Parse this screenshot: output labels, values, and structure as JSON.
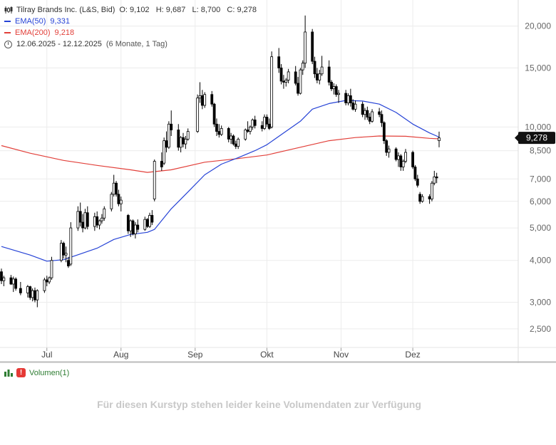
{
  "legend": {
    "instrument": "Tilray Brands Inc. (L&S, Bid)",
    "ohlc": "O: 9,102   H: 9,687   L: 8,700   C: 9,278",
    "ema50_label": "EMA(50)",
    "ema50_value": "9,331",
    "ema200_label": "EMA(200)",
    "ema200_value": "9,218",
    "period": "12.06.2025 - 12.12.2025",
    "period_note": "(6 Monate, 1 Tag)"
  },
  "volume": {
    "label": "Volumen(1)",
    "badge": "!",
    "message": "Für diesen Kurstyp stehen leider keine Volumendaten zur Verfügung"
  },
  "colors": {
    "ema50": "#2643d6",
    "ema200": "#e2403a",
    "candle": "#000000",
    "grid": "#ececec",
    "axis_text": "#666666",
    "last_price_bg": "#111111"
  },
  "chart_data": {
    "type": "candlestick",
    "scale": "log",
    "ylim": [
      2.2,
      23
    ],
    "y_ticks": [
      2.5,
      3,
      4,
      5,
      6,
      7,
      8.5,
      10,
      15,
      20
    ],
    "y_tick_labels": [
      "2,500",
      "3,000",
      "4,000",
      "5,000",
      "6,000",
      "7,000",
      "8,500",
      "10,000",
      "15,000",
      "20,000"
    ],
    "x_ticks": [
      {
        "label": "Jul",
        "date": "2025-07-01"
      },
      {
        "label": "Aug",
        "date": "2025-08-01"
      },
      {
        "label": "Sep",
        "date": "2025-09-01"
      },
      {
        "label": "Okt",
        "date": "2025-10-01"
      },
      {
        "label": "Nov",
        "date": "2025-11-01"
      },
      {
        "label": "Dez",
        "date": "2025-12-01"
      }
    ],
    "last_price_label": "9,278",
    "last_price": 9.278,
    "candles": [
      {
        "d": "2025-06-12",
        "o": 3.7,
        "h": 3.78,
        "l": 3.4,
        "c": 3.48
      },
      {
        "d": "2025-06-13",
        "o": 3.48,
        "h": 3.6,
        "l": 3.35,
        "c": 3.55
      },
      {
        "d": "2025-06-16",
        "o": 3.55,
        "h": 3.62,
        "l": 3.38,
        "c": 3.4
      },
      {
        "d": "2025-06-17",
        "o": 3.4,
        "h": 3.58,
        "l": 3.22,
        "c": 3.52
      },
      {
        "d": "2025-06-18",
        "o": 3.52,
        "h": 3.56,
        "l": 3.25,
        "c": 3.3
      },
      {
        "d": "2025-06-20",
        "o": 3.3,
        "h": 3.45,
        "l": 3.15,
        "c": 3.2
      },
      {
        "d": "2025-06-23",
        "o": 3.2,
        "h": 3.38,
        "l": 3.1,
        "c": 3.34
      },
      {
        "d": "2025-06-24",
        "o": 3.34,
        "h": 3.36,
        "l": 3.05,
        "c": 3.1
      },
      {
        "d": "2025-06-25",
        "o": 3.1,
        "h": 3.3,
        "l": 3.02,
        "c": 3.25
      },
      {
        "d": "2025-06-26",
        "o": 3.25,
        "h": 3.32,
        "l": 3.0,
        "c": 3.05
      },
      {
        "d": "2025-06-27",
        "o": 3.05,
        "h": 3.28,
        "l": 2.9,
        "c": 3.25
      },
      {
        "d": "2025-06-30",
        "o": 3.25,
        "h": 3.55,
        "l": 3.2,
        "c": 3.5
      },
      {
        "d": "2025-07-01",
        "o": 3.5,
        "h": 3.6,
        "l": 3.35,
        "c": 3.45
      },
      {
        "d": "2025-07-02",
        "o": 3.45,
        "h": 3.58,
        "l": 3.4,
        "c": 3.55
      },
      {
        "d": "2025-07-03",
        "o": 3.55,
        "h": 4.1,
        "l": 3.5,
        "c": 4.0
      },
      {
        "d": "2025-07-07",
        "o": 4.0,
        "h": 4.6,
        "l": 3.95,
        "c": 4.5
      },
      {
        "d": "2025-07-08",
        "o": 4.5,
        "h": 4.55,
        "l": 4.05,
        "c": 4.15
      },
      {
        "d": "2025-07-09",
        "o": 4.15,
        "h": 4.4,
        "l": 3.95,
        "c": 4.2
      },
      {
        "d": "2025-07-10",
        "o": 4.0,
        "h": 4.1,
        "l": 3.8,
        "c": 3.85
      },
      {
        "d": "2025-07-11",
        "o": 3.9,
        "h": 5.2,
        "l": 3.85,
        "c": 5.0
      },
      {
        "d": "2025-07-14",
        "o": 5.0,
        "h": 5.8,
        "l": 4.9,
        "c": 5.6
      },
      {
        "d": "2025-07-15",
        "o": 5.6,
        "h": 5.95,
        "l": 5.05,
        "c": 5.2
      },
      {
        "d": "2025-07-16",
        "o": 5.2,
        "h": 5.5,
        "l": 4.85,
        "c": 5.0
      },
      {
        "d": "2025-07-17",
        "o": 5.0,
        "h": 5.7,
        "l": 4.95,
        "c": 5.55
      },
      {
        "d": "2025-07-18",
        "o": 5.55,
        "h": 5.8,
        "l": 4.95,
        "c": 5.05
      },
      {
        "d": "2025-07-21",
        "o": 5.05,
        "h": 5.55,
        "l": 4.9,
        "c": 5.4
      },
      {
        "d": "2025-07-22",
        "o": 5.4,
        "h": 5.6,
        "l": 5.0,
        "c": 5.1
      },
      {
        "d": "2025-07-23",
        "o": 5.1,
        "h": 5.3,
        "l": 4.95,
        "c": 5.25
      },
      {
        "d": "2025-07-24",
        "o": 5.25,
        "h": 5.5,
        "l": 5.15,
        "c": 5.35
      },
      {
        "d": "2025-07-25",
        "o": 5.35,
        "h": 5.8,
        "l": 5.25,
        "c": 5.7
      },
      {
        "d": "2025-07-28",
        "o": 5.7,
        "h": 6.4,
        "l": 5.6,
        "c": 6.3
      },
      {
        "d": "2025-07-29",
        "o": 6.3,
        "h": 7.2,
        "l": 6.2,
        "c": 6.8
      },
      {
        "d": "2025-07-30",
        "o": 6.8,
        "h": 6.9,
        "l": 6.2,
        "c": 6.3
      },
      {
        "d": "2025-07-31",
        "o": 6.3,
        "h": 6.5,
        "l": 5.8,
        "c": 5.9
      },
      {
        "d": "2025-08-01",
        "o": 5.9,
        "h": 6.2,
        "l": 5.6,
        "c": 6.05
      },
      {
        "d": "2025-08-04",
        "o": 5.45,
        "h": 5.5,
        "l": 4.8,
        "c": 4.9
      },
      {
        "d": "2025-08-05",
        "o": 4.9,
        "h": 5.3,
        "l": 4.7,
        "c": 5.25
      },
      {
        "d": "2025-08-06",
        "o": 5.25,
        "h": 5.3,
        "l": 4.75,
        "c": 4.8
      },
      {
        "d": "2025-08-07",
        "o": 4.8,
        "h": 5.2,
        "l": 4.65,
        "c": 5.1
      },
      {
        "d": "2025-08-08",
        "o": 5.1,
        "h": 5.3,
        "l": 4.85,
        "c": 4.95
      },
      {
        "d": "2025-08-11",
        "o": 4.95,
        "h": 5.4,
        "l": 4.9,
        "c": 5.3
      },
      {
        "d": "2025-08-12",
        "o": 5.3,
        "h": 5.35,
        "l": 5.0,
        "c": 5.05
      },
      {
        "d": "2025-08-13",
        "o": 5.05,
        "h": 5.55,
        "l": 5.0,
        "c": 5.45
      },
      {
        "d": "2025-08-14",
        "o": 5.45,
        "h": 5.65,
        "l": 5.1,
        "c": 5.2
      },
      {
        "d": "2025-08-15",
        "o": 6.1,
        "h": 8.0,
        "l": 6.0,
        "c": 7.9
      },
      {
        "d": "2025-08-18",
        "o": 7.9,
        "h": 8.4,
        "l": 7.4,
        "c": 7.6
      },
      {
        "d": "2025-08-19",
        "o": 7.8,
        "h": 9.3,
        "l": 7.7,
        "c": 9.1
      },
      {
        "d": "2025-08-20",
        "o": 9.1,
        "h": 9.7,
        "l": 8.4,
        "c": 8.7
      },
      {
        "d": "2025-08-21",
        "o": 8.7,
        "h": 10.4,
        "l": 8.6,
        "c": 10.2
      },
      {
        "d": "2025-08-22",
        "o": 10.2,
        "h": 11.2,
        "l": 9.4,
        "c": 9.8
      },
      {
        "d": "2025-08-25",
        "o": 9.8,
        "h": 10.2,
        "l": 8.5,
        "c": 8.7
      },
      {
        "d": "2025-08-26",
        "o": 8.7,
        "h": 9.4,
        "l": 8.4,
        "c": 9.3
      },
      {
        "d": "2025-08-27",
        "o": 9.3,
        "h": 9.6,
        "l": 8.7,
        "c": 8.9
      },
      {
        "d": "2025-08-28",
        "o": 8.9,
        "h": 9.4,
        "l": 8.6,
        "c": 9.2
      },
      {
        "d": "2025-08-29",
        "o": 9.2,
        "h": 9.9,
        "l": 9.1,
        "c": 9.7
      },
      {
        "d": "2025-09-02",
        "o": 9.7,
        "h": 12.5,
        "l": 9.6,
        "c": 12.2
      },
      {
        "d": "2025-09-03",
        "o": 12.2,
        "h": 13.6,
        "l": 11.8,
        "c": 12.4
      },
      {
        "d": "2025-09-04",
        "o": 12.4,
        "h": 12.9,
        "l": 11.3,
        "c": 11.6
      },
      {
        "d": "2025-09-05",
        "o": 11.6,
        "h": 12.7,
        "l": 11.4,
        "c": 12.5
      },
      {
        "d": "2025-09-08",
        "o": 12.5,
        "h": 12.8,
        "l": 11.5,
        "c": 11.7
      },
      {
        "d": "2025-09-09",
        "o": 11.7,
        "h": 11.8,
        "l": 10.0,
        "c": 10.2
      },
      {
        "d": "2025-09-10",
        "o": 10.2,
        "h": 10.6,
        "l": 9.4,
        "c": 9.7
      },
      {
        "d": "2025-09-11",
        "o": 9.7,
        "h": 10.2,
        "l": 9.3,
        "c": 9.5
      },
      {
        "d": "2025-09-12",
        "o": 9.5,
        "h": 10.1,
        "l": 9.4,
        "c": 9.9
      },
      {
        "d": "2025-09-15",
        "o": 9.9,
        "h": 10.0,
        "l": 9.0,
        "c": 9.2
      },
      {
        "d": "2025-09-16",
        "o": 9.2,
        "h": 9.6,
        "l": 8.9,
        "c": 9.4
      },
      {
        "d": "2025-09-17",
        "o": 9.4,
        "h": 9.5,
        "l": 8.8,
        "c": 8.9
      },
      {
        "d": "2025-09-18",
        "o": 8.9,
        "h": 9.1,
        "l": 8.6,
        "c": 8.75
      },
      {
        "d": "2025-09-19",
        "o": 8.75,
        "h": 9.3,
        "l": 8.6,
        "c": 9.2
      },
      {
        "d": "2025-09-22",
        "o": 9.2,
        "h": 9.9,
        "l": 9.1,
        "c": 9.8
      },
      {
        "d": "2025-09-23",
        "o": 9.8,
        "h": 10.4,
        "l": 9.6,
        "c": 9.7
      },
      {
        "d": "2025-09-24",
        "o": 9.7,
        "h": 10.1,
        "l": 9.5,
        "c": 10.0
      },
      {
        "d": "2025-09-25",
        "o": 10.0,
        "h": 10.6,
        "l": 9.8,
        "c": 10.5
      },
      {
        "d": "2025-09-26",
        "o": 10.5,
        "h": 10.8,
        "l": 9.9,
        "c": 10.1
      },
      {
        "d": "2025-09-29",
        "o": 10.1,
        "h": 10.4,
        "l": 9.7,
        "c": 9.9
      },
      {
        "d": "2025-09-30",
        "o": 9.9,
        "h": 10.9,
        "l": 9.8,
        "c": 10.7
      },
      {
        "d": "2025-10-01",
        "o": 10.7,
        "h": 10.9,
        "l": 10.0,
        "c": 10.2
      },
      {
        "d": "2025-10-02",
        "o": 10.2,
        "h": 10.6,
        "l": 9.8,
        "c": 9.9
      },
      {
        "d": "2025-10-03",
        "o": 10.0,
        "h": 16.8,
        "l": 9.9,
        "c": 16.2
      },
      {
        "d": "2025-10-06",
        "o": 16.2,
        "h": 17.2,
        "l": 14.5,
        "c": 15.0
      },
      {
        "d": "2025-10-07",
        "o": 15.0,
        "h": 15.4,
        "l": 13.4,
        "c": 13.7
      },
      {
        "d": "2025-10-08",
        "o": 13.7,
        "h": 14.3,
        "l": 13.0,
        "c": 13.6
      },
      {
        "d": "2025-10-09",
        "o": 13.6,
        "h": 14.0,
        "l": 13.2,
        "c": 13.8
      },
      {
        "d": "2025-10-10",
        "o": 13.8,
        "h": 14.9,
        "l": 13.5,
        "c": 14.6
      },
      {
        "d": "2025-10-13",
        "o": 14.6,
        "h": 15.2,
        "l": 13.3,
        "c": 13.5
      },
      {
        "d": "2025-10-14",
        "o": 13.5,
        "h": 14.1,
        "l": 12.4,
        "c": 12.6
      },
      {
        "d": "2025-10-15",
        "o": 12.6,
        "h": 15.0,
        "l": 12.5,
        "c": 14.8
      },
      {
        "d": "2025-10-16",
        "o": 14.8,
        "h": 15.8,
        "l": 14.3,
        "c": 15.5
      },
      {
        "d": "2025-10-17",
        "o": 15.5,
        "h": 21.5,
        "l": 15.0,
        "c": 19.2
      },
      {
        "d": "2025-10-20",
        "o": 19.2,
        "h": 19.6,
        "l": 15.4,
        "c": 15.7
      },
      {
        "d": "2025-10-21",
        "o": 15.7,
        "h": 16.2,
        "l": 14.0,
        "c": 14.4
      },
      {
        "d": "2025-10-22",
        "o": 14.4,
        "h": 15.0,
        "l": 13.5,
        "c": 13.8
      },
      {
        "d": "2025-10-23",
        "o": 13.8,
        "h": 14.8,
        "l": 13.4,
        "c": 14.4
      },
      {
        "d": "2025-10-24",
        "o": 14.4,
        "h": 16.3,
        "l": 14.2,
        "c": 15.1
      },
      {
        "d": "2025-10-27",
        "o": 15.1,
        "h": 15.8,
        "l": 13.3,
        "c": 13.6
      },
      {
        "d": "2025-10-28",
        "o": 13.6,
        "h": 13.8,
        "l": 12.8,
        "c": 13.0
      },
      {
        "d": "2025-10-29",
        "o": 13.0,
        "h": 13.5,
        "l": 12.5,
        "c": 13.2
      },
      {
        "d": "2025-10-30",
        "o": 13.2,
        "h": 13.4,
        "l": 12.3,
        "c": 12.5
      },
      {
        "d": "2025-10-31",
        "o": 12.5,
        "h": 12.9,
        "l": 11.8,
        "c": 12.6
      },
      {
        "d": "2025-11-03",
        "o": 12.6,
        "h": 12.9,
        "l": 11.6,
        "c": 11.8
      },
      {
        "d": "2025-11-04",
        "o": 11.8,
        "h": 12.6,
        "l": 11.6,
        "c": 12.4
      },
      {
        "d": "2025-11-05",
        "o": 12.4,
        "h": 13.0,
        "l": 11.5,
        "c": 11.8
      },
      {
        "d": "2025-11-06",
        "o": 11.8,
        "h": 12.1,
        "l": 11.2,
        "c": 11.3
      },
      {
        "d": "2025-11-07",
        "o": 11.3,
        "h": 12.0,
        "l": 11.1,
        "c": 11.7
      },
      {
        "d": "2025-11-10",
        "o": 11.7,
        "h": 11.9,
        "l": 10.7,
        "c": 10.9
      },
      {
        "d": "2025-11-11",
        "o": 10.9,
        "h": 11.4,
        "l": 10.5,
        "c": 11.2
      },
      {
        "d": "2025-11-12",
        "o": 11.2,
        "h": 11.5,
        "l": 10.5,
        "c": 10.7
      },
      {
        "d": "2025-11-13",
        "o": 10.7,
        "h": 11.0,
        "l": 10.2,
        "c": 10.4
      },
      {
        "d": "2025-11-14",
        "o": 10.4,
        "h": 11.3,
        "l": 10.3,
        "c": 11.1
      },
      {
        "d": "2025-11-17",
        "o": 11.1,
        "h": 11.4,
        "l": 10.7,
        "c": 10.9
      },
      {
        "d": "2025-11-18",
        "o": 10.9,
        "h": 11.2,
        "l": 10.0,
        "c": 10.3
      },
      {
        "d": "2025-11-19",
        "o": 10.3,
        "h": 10.4,
        "l": 8.9,
        "c": 9.1
      },
      {
        "d": "2025-11-20",
        "o": 9.1,
        "h": 9.2,
        "l": 8.2,
        "c": 8.4
      },
      {
        "d": "2025-11-21",
        "o": 8.4,
        "h": 8.8,
        "l": 8.1,
        "c": 8.6
      },
      {
        "d": "2025-11-24",
        "o": 8.6,
        "h": 8.7,
        "l": 7.9,
        "c": 8.0
      },
      {
        "d": "2025-11-25",
        "o": 8.0,
        "h": 8.4,
        "l": 7.6,
        "c": 8.2
      },
      {
        "d": "2025-11-26",
        "o": 8.2,
        "h": 8.3,
        "l": 7.4,
        "c": 7.6
      },
      {
        "d": "2025-11-27",
        "o": 7.6,
        "h": 8.0,
        "l": 7.4,
        "c": 7.9
      },
      {
        "d": "2025-11-28",
        "o": 7.9,
        "h": 8.6,
        "l": 7.8,
        "c": 8.4
      },
      {
        "d": "2025-12-01",
        "o": 8.4,
        "h": 8.5,
        "l": 7.5,
        "c": 7.6
      },
      {
        "d": "2025-12-02",
        "o": 7.6,
        "h": 7.7,
        "l": 6.9,
        "c": 7.0
      },
      {
        "d": "2025-12-03",
        "o": 7.0,
        "h": 7.2,
        "l": 6.6,
        "c": 6.7
      },
      {
        "d": "2025-12-04",
        "o": 6.3,
        "h": 6.4,
        "l": 5.9,
        "c": 6.0
      },
      {
        "d": "2025-12-05",
        "o": 6.0,
        "h": 6.3,
        "l": 5.95,
        "c": 6.2
      },
      {
        "d": "2025-12-08",
        "o": 6.2,
        "h": 6.3,
        "l": 5.9,
        "c": 6.1
      },
      {
        "d": "2025-12-09",
        "o": 6.1,
        "h": 6.9,
        "l": 6.0,
        "c": 6.8
      },
      {
        "d": "2025-12-10",
        "o": 6.8,
        "h": 7.4,
        "l": 6.7,
        "c": 7.1
      },
      {
        "d": "2025-12-11",
        "o": 7.1,
        "h": 7.3,
        "l": 6.8,
        "c": 7.05
      },
      {
        "d": "2025-12-12",
        "o": 9.102,
        "h": 9.687,
        "l": 8.7,
        "c": 9.278
      }
    ],
    "series": [
      {
        "name": "EMA(50)",
        "points": [
          [
            "2025-06-12",
            4.4
          ],
          [
            "2025-06-24",
            4.15
          ],
          [
            "2025-07-01",
            3.98
          ],
          [
            "2025-07-08",
            4.02
          ],
          [
            "2025-07-15",
            4.18
          ],
          [
            "2025-07-22",
            4.35
          ],
          [
            "2025-07-29",
            4.62
          ],
          [
            "2025-08-05",
            4.78
          ],
          [
            "2025-08-12",
            4.85
          ],
          [
            "2025-08-15",
            4.95
          ],
          [
            "2025-08-22",
            5.7
          ],
          [
            "2025-08-29",
            6.4
          ],
          [
            "2025-09-05",
            7.2
          ],
          [
            "2025-09-12",
            7.75
          ],
          [
            "2025-09-19",
            8.1
          ],
          [
            "2025-09-26",
            8.5
          ],
          [
            "2025-10-01",
            8.85
          ],
          [
            "2025-10-08",
            9.6
          ],
          [
            "2025-10-15",
            10.4
          ],
          [
            "2025-10-20",
            11.3
          ],
          [
            "2025-10-27",
            11.75
          ],
          [
            "2025-11-03",
            12.0
          ],
          [
            "2025-11-10",
            11.95
          ],
          [
            "2025-11-17",
            11.7
          ],
          [
            "2025-11-24",
            11.05
          ],
          [
            "2025-12-01",
            10.2
          ],
          [
            "2025-12-08",
            9.6
          ],
          [
            "2025-12-12",
            9.331
          ]
        ]
      },
      {
        "name": "EMA(200)",
        "points": [
          [
            "2025-06-12",
            8.8
          ],
          [
            "2025-06-24",
            8.35
          ],
          [
            "2025-07-08",
            7.95
          ],
          [
            "2025-07-22",
            7.68
          ],
          [
            "2025-08-05",
            7.45
          ],
          [
            "2025-08-12",
            7.32
          ],
          [
            "2025-08-22",
            7.45
          ],
          [
            "2025-09-05",
            7.85
          ],
          [
            "2025-09-19",
            8.05
          ],
          [
            "2025-10-01",
            8.25
          ],
          [
            "2025-10-15",
            8.7
          ],
          [
            "2025-10-27",
            9.1
          ],
          [
            "2025-11-07",
            9.3
          ],
          [
            "2025-11-17",
            9.4
          ],
          [
            "2025-11-28",
            9.38
          ],
          [
            "2025-12-08",
            9.25
          ],
          [
            "2025-12-12",
            9.218
          ]
        ]
      }
    ]
  }
}
